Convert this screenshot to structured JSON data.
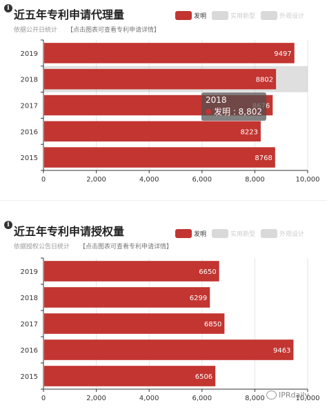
{
  "colors": {
    "invention": "#c23531",
    "legend_off": "#d9d9d9",
    "grid": "#e6e6e6",
    "axis": "#333333"
  },
  "legend": [
    "发明",
    "实用新型",
    "外观设计"
  ],
  "panel1": {
    "title": "近五年专利申请代理量",
    "subtitle": "依据公开日统计",
    "link": "【点击图表可查看专利申请详情】",
    "tooltip": {
      "year": "2018",
      "text": "发明 : 8,802"
    }
  },
  "panel2": {
    "title": "近五年专利申请授权量",
    "subtitle": "依据授权公告日统计",
    "link": "【点击图表可查看专利申请详情】"
  },
  "watermark": "IPRdaily",
  "chart_data": [
    {
      "type": "bar",
      "orientation": "horizontal",
      "title": "近五年专利申请代理量",
      "subtitle": "依据公开日统计",
      "categories": [
        "2019",
        "2018",
        "2017",
        "2016",
        "2015"
      ],
      "series": [
        {
          "name": "发明",
          "values": [
            9497,
            8802,
            8676,
            8223,
            8768
          ]
        }
      ],
      "xlim": [
        0,
        10000
      ],
      "xticks": [
        0,
        2000,
        4000,
        6000,
        8000,
        10000
      ],
      "xtick_labels": [
        "0",
        "2,000",
        "4,000",
        "6,000",
        "8,000",
        "10,000"
      ],
      "grid": true,
      "highlighted_category": "2018"
    },
    {
      "type": "bar",
      "orientation": "horizontal",
      "title": "近五年专利申请授权量",
      "subtitle": "依据授权公告日统计",
      "categories": [
        "2019",
        "2018",
        "2017",
        "2016",
        "2015"
      ],
      "series": [
        {
          "name": "发明",
          "values": [
            6650,
            6299,
            6850,
            9463,
            6506
          ]
        }
      ],
      "xlim": [
        0,
        10000
      ],
      "xticks": [
        0,
        2000,
        4000,
        6000,
        8000,
        10000
      ],
      "xtick_labels": [
        "0",
        "2,000",
        "4,000",
        "6,000",
        "8,000",
        "10,000"
      ],
      "grid": true
    }
  ]
}
